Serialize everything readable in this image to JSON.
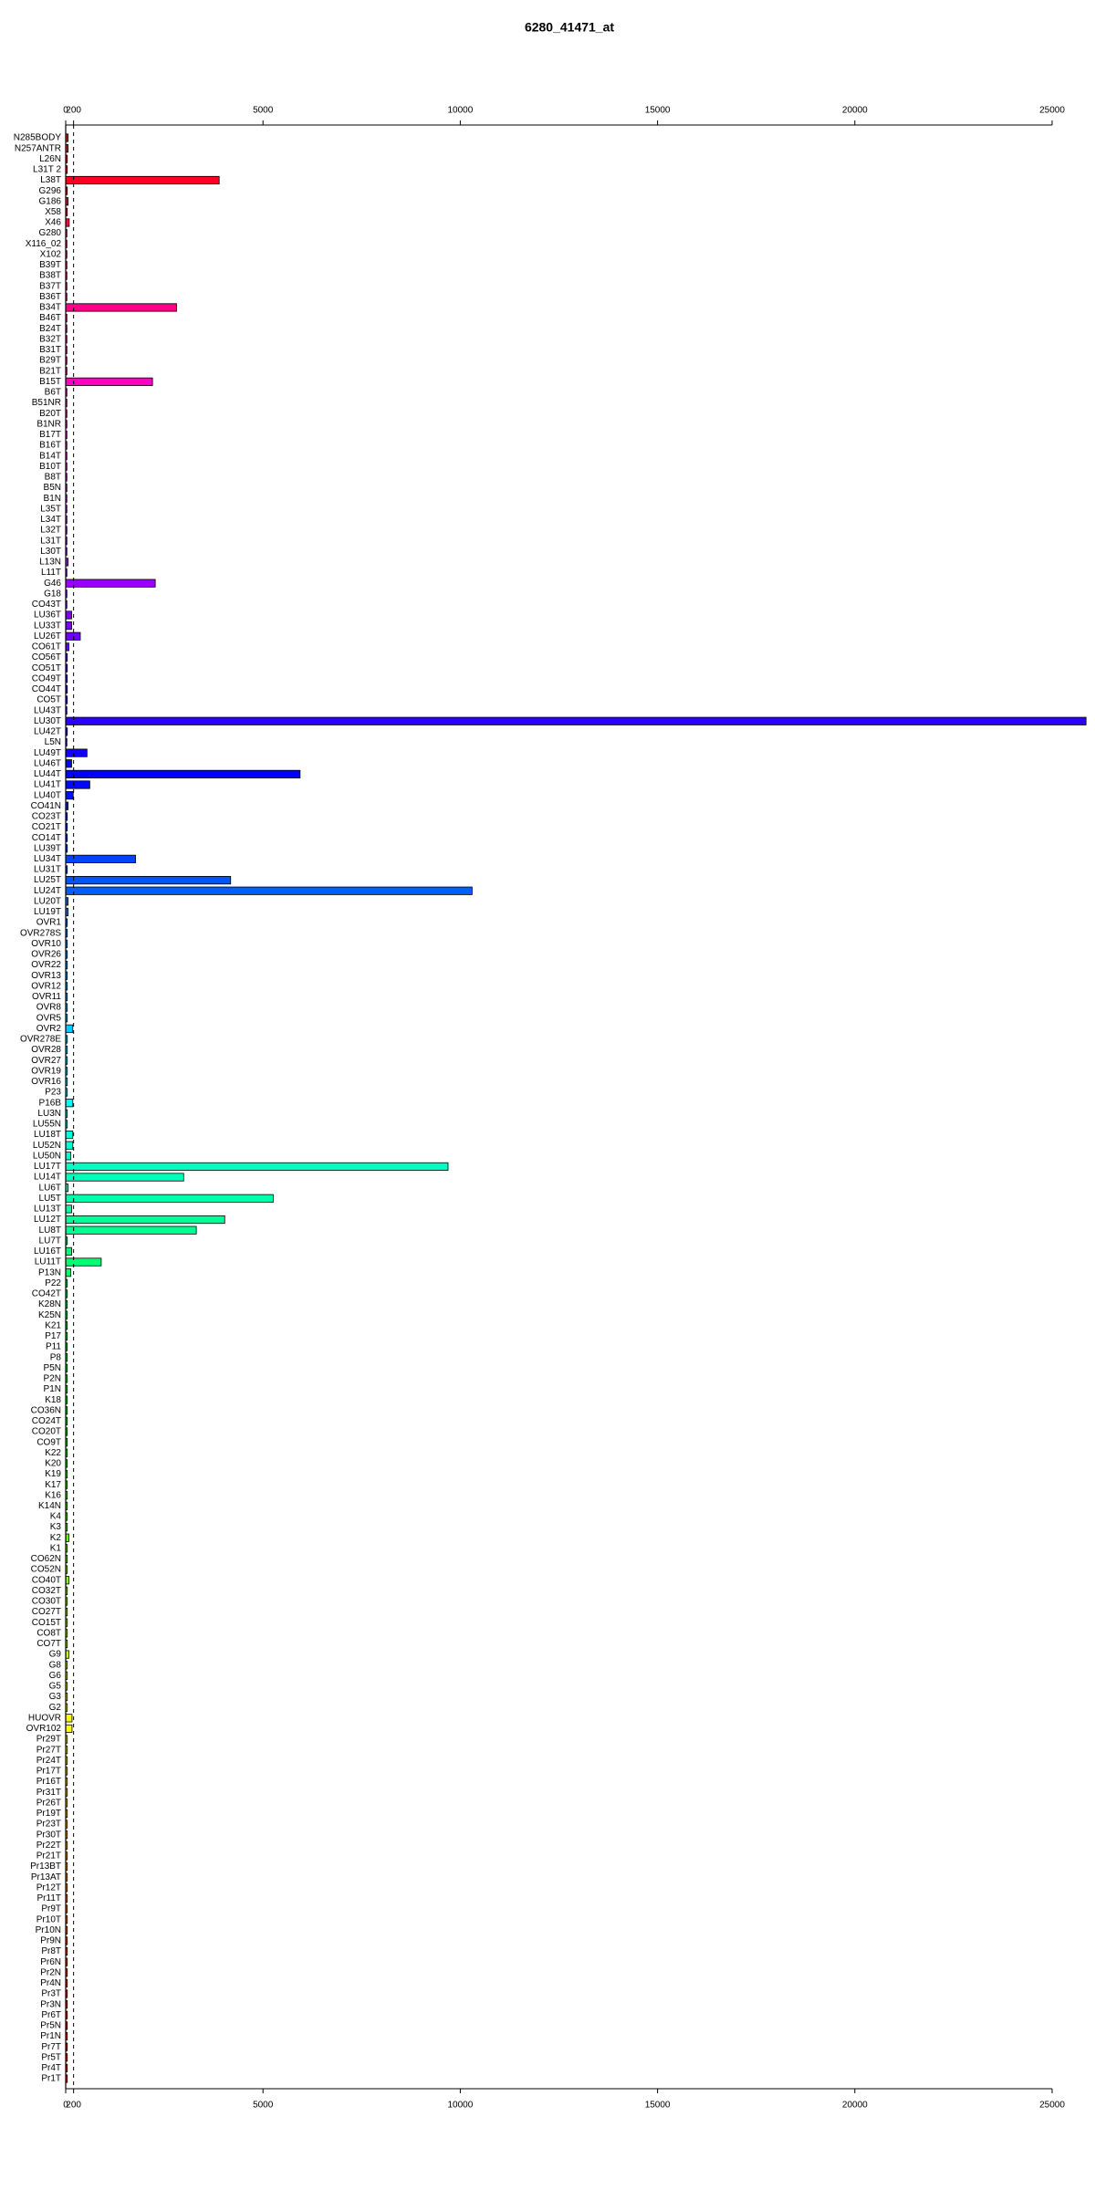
{
  "chart_data": {
    "type": "bar",
    "orientation": "horizontal",
    "title": "6280_41471_at",
    "categories": [
      "N285BODY",
      "N257ANTR",
      "L26N",
      "L31T 2",
      "L38T",
      "G296",
      "G186",
      "X58",
      "X46",
      "G280",
      "X116_02",
      "X102",
      "B39T",
      "B38T",
      "B37T",
      "B36T",
      "B34T",
      "B46T",
      "B24T",
      "B32T",
      "B31T",
      "B29T",
      "B21T",
      "B15T",
      "B6T",
      "B51NR",
      "B20T",
      "B1NR",
      "B17T",
      "B16T",
      "B14T",
      "B10T",
      "B8T",
      "B5N",
      "B1N",
      "L35T",
      "L34T",
      "L32T",
      "L31T",
      "L30T",
      "L13N",
      "L11T",
      "G46",
      "G18",
      "CO43T",
      "LU36T",
      "LU33T",
      "LU26T",
      "CO61T",
      "CO56T",
      "CO51T",
      "CO49T",
      "CO44T",
      "CO5T",
      "LU43T",
      "LU30T",
      "LU42T",
      "L5N",
      "LU49T",
      "LU46T",
      "LU44T",
      "LU41T",
      "LU40T",
      "CO41N",
      "CO23T",
      "CO21T",
      "CO14T",
      "LU39T",
      "LU34T",
      "LU31T",
      "LU25T",
      "LU24T",
      "LU20T",
      "LU19T",
      "OVR1",
      "OVR278S",
      "OVR10",
      "OVR26",
      "OVR22",
      "OVR13",
      "OVR12",
      "OVR11",
      "OVR8",
      "OVR5",
      "OVR2",
      "OVR278E",
      "OVR28",
      "OVR27",
      "OVR19",
      "OVR16",
      "P23",
      "P16B",
      "LU3N",
      "LU55N",
      "LU18T",
      "LU52N",
      "LU50N",
      "LU17T",
      "LU14T",
      "LU6T",
      "LU5T",
      "LU13T",
      "LU12T",
      "LU8T",
      "LU7T",
      "LU16T",
      "LU11T",
      "P13N",
      "P22",
      "CO42T",
      "K28N",
      "K25N",
      "K21",
      "P17",
      "P11",
      "P8",
      "P5N",
      "P2N",
      "P1N",
      "K18",
      "CO36N",
      "CO24T",
      "CO20T",
      "CO9T",
      "K22",
      "K20",
      "K19",
      "K17",
      "K16",
      "K14N",
      "K4",
      "K3",
      "K2",
      "K1",
      "CO62N",
      "CO52N",
      "CO40T",
      "CO32T",
      "CO30T",
      "CO27T",
      "CO15T",
      "CO8T",
      "CO7T",
      "G9",
      "G8",
      "G6",
      "G5",
      "G3",
      "G2",
      "HUOVR",
      "OVR102",
      "Pr29T",
      "Pr27T",
      "Pr24T",
      "Pr17T",
      "Pr16T",
      "Pr31T",
      "Pr26T",
      "Pr19T",
      "Pr23T",
      "Pr30T",
      "Pr22T",
      "Pr21T",
      "Pr13BT",
      "Pr13AT",
      "Pr12T",
      "Pr11T",
      "Pr9T",
      "Pr10T",
      "Pr10N",
      "Pr9N",
      "Pr8T",
      "Pr6N",
      "Pr2N",
      "Pr4N",
      "Pr3T",
      "Pr3N",
      "Pr6T",
      "Pr5N",
      "Pr1N",
      "Pr7T",
      "Pr5T",
      "Pr4T",
      "Pr1T"
    ],
    "values": [
      60,
      60,
      40,
      40,
      3890,
      40,
      60,
      40,
      90,
      30,
      30,
      30,
      30,
      30,
      30,
      30,
      2810,
      30,
      30,
      30,
      30,
      30,
      30,
      2200,
      30,
      30,
      30,
      30,
      30,
      30,
      30,
      30,
      30,
      30,
      30,
      30,
      30,
      30,
      30,
      30,
      60,
      30,
      2270,
      30,
      30,
      150,
      150,
      370,
      80,
      40,
      40,
      40,
      40,
      40,
      30,
      25860,
      40,
      30,
      540,
      150,
      5940,
      610,
      190,
      60,
      40,
      40,
      40,
      40,
      1770,
      40,
      4180,
      10300,
      60,
      60,
      40,
      40,
      40,
      40,
      40,
      40,
      40,
      40,
      40,
      40,
      180,
      40,
      40,
      40,
      40,
      40,
      40,
      180,
      40,
      40,
      180,
      180,
      130,
      9690,
      2990,
      60,
      5260,
      150,
      4030,
      3310,
      40,
      150,
      900,
      130,
      40,
      40,
      40,
      40,
      40,
      40,
      40,
      40,
      40,
      40,
      40,
      40,
      40,
      40,
      40,
      40,
      40,
      40,
      40,
      40,
      40,
      40,
      40,
      40,
      80,
      40,
      40,
      40,
      80,
      40,
      40,
      40,
      40,
      40,
      40,
      80,
      40,
      40,
      40,
      40,
      40,
      160,
      160,
      40,
      40,
      40,
      40,
      40,
      40,
      40,
      40,
      40,
      40,
      40,
      40,
      40,
      40,
      40,
      40,
      40,
      40,
      40,
      40,
      40,
      40,
      40,
      40,
      40,
      40,
      40,
      40,
      40,
      40,
      40,
      40,
      40
    ],
    "hue_start": 360,
    "hue_end": -6,
    "xlim": [
      0,
      25000
    ],
    "xticks": [
      0,
      200,
      5000,
      10000,
      15000,
      20000,
      25000
    ],
    "reference_line": 200
  }
}
